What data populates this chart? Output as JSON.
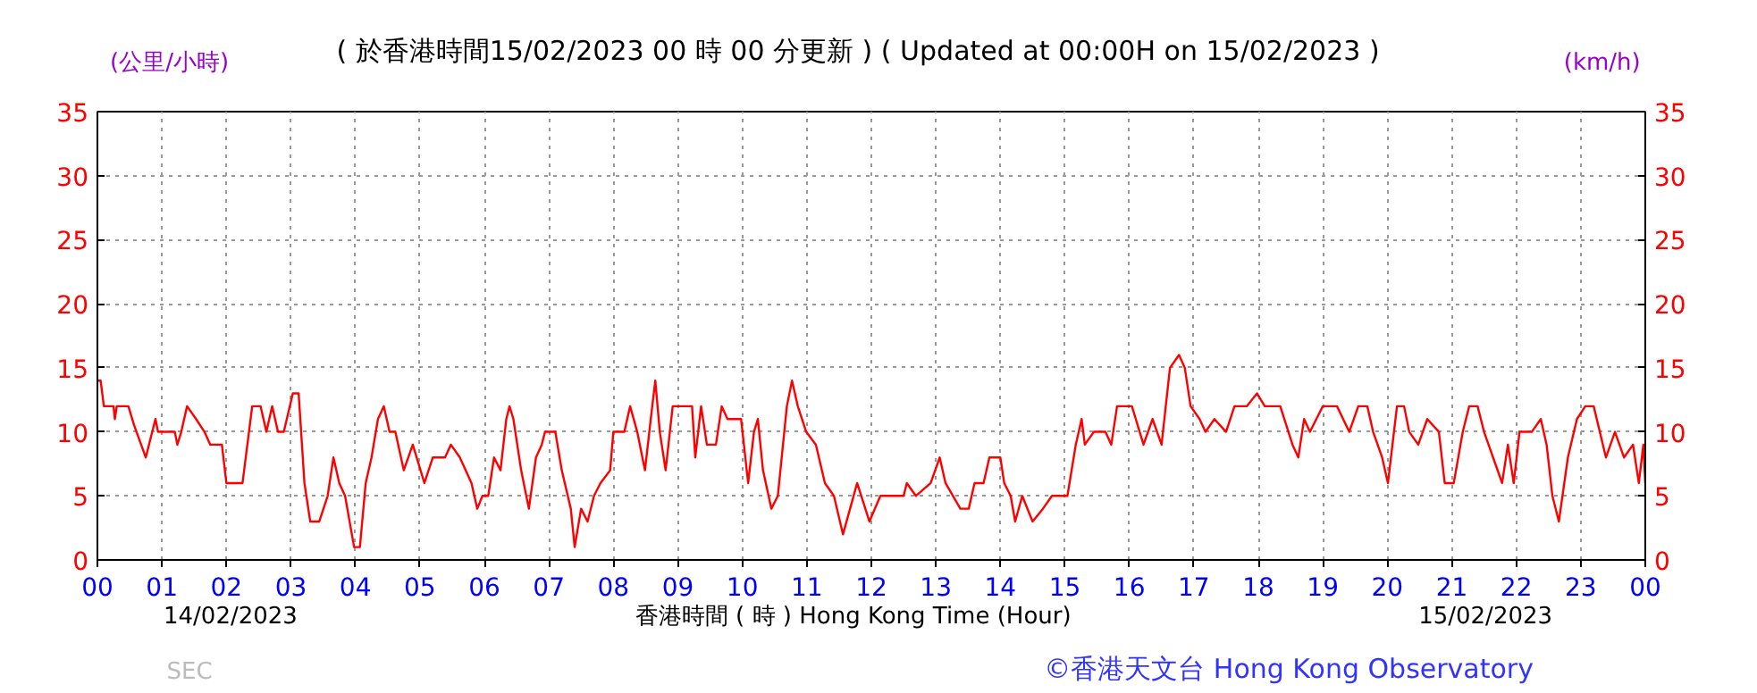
{
  "chart_data": {
    "type": "line",
    "title": "( 於香港時間15/02/2023 00 時 00 分更新 ) ( Updated at 00:00H on 15/02/2023 )",
    "xlabel": "香港時間 ( 時 ) Hong Kong Time (Hour)",
    "ylabel": "(公里/小時)",
    "y2label": "(km/h)",
    "annotations": [
      "14/02/2023",
      "15/02/2023",
      "SEC",
      "©香港天文台 Hong Kong Observatory"
    ],
    "xlim": [
      0,
      24
    ],
    "xticks": [
      {
        "value": 0,
        "label": "00"
      },
      {
        "value": 1,
        "label": "01"
      },
      {
        "value": 2,
        "label": "02"
      },
      {
        "value": 3,
        "label": "03"
      },
      {
        "value": 4,
        "label": "04"
      },
      {
        "value": 5,
        "label": "05"
      },
      {
        "value": 6,
        "label": "06"
      },
      {
        "value": 7,
        "label": "07"
      },
      {
        "value": 8,
        "label": "08"
      },
      {
        "value": 9,
        "label": "09"
      },
      {
        "value": 10,
        "label": "10"
      },
      {
        "value": 11,
        "label": "11"
      },
      {
        "value": 12,
        "label": "12"
      },
      {
        "value": 13,
        "label": "13"
      },
      {
        "value": 14,
        "label": "14"
      },
      {
        "value": 15,
        "label": "15"
      },
      {
        "value": 16,
        "label": "16"
      },
      {
        "value": 17,
        "label": "17"
      },
      {
        "value": 18,
        "label": "18"
      },
      {
        "value": 19,
        "label": "19"
      },
      {
        "value": 20,
        "label": "20"
      },
      {
        "value": 21,
        "label": "21"
      },
      {
        "value": 22,
        "label": "22"
      },
      {
        "value": 23,
        "label": "23"
      },
      {
        "value": 24,
        "label": "00"
      }
    ],
    "ylim": [
      0,
      35
    ],
    "yticks": [
      0,
      5,
      10,
      15,
      20,
      25,
      30,
      35
    ],
    "y2lim": [
      0,
      35
    ],
    "y2ticks": [
      0,
      5,
      10,
      15,
      20,
      25,
      30,
      35
    ],
    "grid": true,
    "line_style": "solid",
    "marker": "none",
    "series": [
      {
        "color": "#ff0000",
        "x": [
          0,
          0.05,
          0.1,
          0.25,
          0.27,
          0.3,
          0.48,
          0.57,
          0.75,
          0.9,
          0.94,
          1.2,
          1.24,
          1.3,
          1.39,
          1.53,
          1.66,
          1.75,
          1.93,
          2.0,
          2.25,
          2.35,
          2.4,
          2.53,
          2.62,
          2.71,
          2.8,
          2.89,
          3.03,
          3.12,
          3.21,
          3.3,
          3.44,
          3.57,
          3.66,
          3.75,
          3.84,
          3.98,
          4.07,
          4.16,
          4.25,
          4.35,
          4.44,
          4.53,
          4.62,
          4.75,
          4.89,
          5.07,
          5.2,
          5.39,
          5.48,
          5.62,
          5.8,
          5.89,
          5.97,
          6.06,
          6.15,
          6.25,
          6.34,
          6.39,
          6.45,
          6.57,
          6.69,
          6.8,
          6.89,
          6.94,
          7.1,
          7.2,
          7.34,
          7.4,
          7.5,
          7.6,
          7.7,
          7.8,
          7.95,
          8.0,
          8.17,
          8.26,
          8.37,
          8.49,
          8.58,
          8.65,
          8.72,
          8.81,
          8.92,
          9.22,
          9.27,
          9.36,
          9.45,
          9.59,
          9.68,
          9.77,
          9.98,
          10.09,
          10.18,
          10.24,
          10.32,
          10.45,
          10.55,
          10.69,
          10.77,
          10.86,
          10.99,
          11.14,
          11.28,
          11.42,
          11.56,
          11.78,
          11.97,
          12.14,
          12.5,
          12.55,
          12.69,
          12.92,
          13.06,
          13.15,
          13.38,
          13.51,
          13.6,
          13.74,
          13.83,
          14.0,
          14.06,
          14.16,
          14.23,
          14.34,
          14.5,
          14.66,
          14.8,
          15.04,
          15.17,
          15.26,
          15.31,
          15.45,
          15.63,
          15.72,
          15.81,
          16.04,
          16.22,
          16.36,
          16.5,
          16.63,
          16.77,
          16.86,
          16.95,
          17.09,
          17.18,
          17.32,
          17.5,
          17.63,
          17.82,
          17.98,
          18.1,
          18.34,
          18.53,
          18.62,
          18.71,
          18.8,
          18.9,
          19.0,
          19.22,
          19.41,
          19.55,
          19.69,
          19.78,
          19.92,
          20.01,
          20.15,
          20.26,
          20.34,
          20.48,
          20.62,
          20.8,
          20.89,
          21.03,
          21.17,
          21.27,
          21.4,
          21.5,
          21.64,
          21.78,
          21.87,
          21.96,
          22.05,
          22.24,
          22.38,
          22.47,
          22.56,
          22.66,
          22.8,
          22.94,
          23.07,
          23.2,
          23.39,
          23.53,
          23.67,
          23.81,
          23.9,
          23.97,
          24.0
        ],
        "values": [
          14,
          14,
          12,
          12,
          11,
          12,
          12,
          10.5,
          8,
          11,
          10,
          10,
          9,
          10,
          12,
          11,
          10,
          9,
          9,
          6,
          6,
          10,
          12,
          12,
          10,
          12,
          10,
          10,
          13,
          13,
          6,
          3,
          3,
          5,
          8,
          6,
          5,
          1,
          1,
          6,
          8,
          11,
          12,
          10,
          10,
          7,
          9,
          6,
          8,
          8,
          9,
          8,
          6,
          4,
          5,
          5,
          8,
          7,
          11,
          12,
          11,
          7,
          4,
          8,
          9,
          10,
          10,
          7,
          4,
          1,
          4,
          3,
          5,
          6,
          7,
          10,
          10,
          12,
          10,
          7,
          11,
          14,
          10,
          7,
          12,
          12,
          8,
          12,
          9,
          9,
          12,
          11,
          11,
          6,
          10,
          11,
          7,
          4,
          5,
          12,
          14,
          12,
          10,
          9,
          6,
          5,
          2,
          6,
          3,
          5,
          5,
          6,
          5,
          6,
          8,
          6,
          4,
          4,
          6,
          6,
          8,
          8,
          6,
          5,
          3,
          5,
          3,
          4,
          5,
          5,
          9,
          11,
          9,
          10,
          10,
          9,
          12,
          12,
          9,
          11,
          9,
          15,
          16,
          15,
          12,
          11,
          10,
          11,
          10,
          12,
          12,
          13,
          12,
          12,
          9,
          8,
          11,
          10,
          11,
          12,
          12,
          10,
          12,
          12,
          10,
          8,
          6,
          12,
          12,
          10,
          9,
          11,
          10,
          6,
          6,
          10,
          12,
          12,
          10,
          8,
          6,
          9,
          6,
          10,
          10,
          11,
          9,
          5,
          3,
          8,
          11,
          12,
          12,
          8,
          10,
          8,
          9,
          6,
          9,
          6
        ]
      }
    ]
  }
}
